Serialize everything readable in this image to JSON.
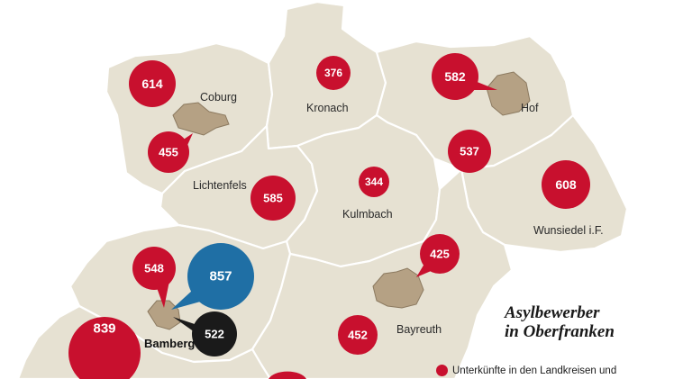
{
  "title": [
    "Asylbewerber",
    "in Oberfranken"
  ],
  "legend": {
    "label": "Unterkünfte in den Landkreisen und",
    "color": "#c8102e"
  },
  "colors": {
    "red": "#c8102e",
    "blue": "#1f6fa5",
    "black": "#1a1a1a",
    "land": "#e6e1d2",
    "city": "#b5a184"
  },
  "place_labels": [
    {
      "id": "coburg",
      "text": "Coburg"
    },
    {
      "id": "kronach",
      "text": "Kronach"
    },
    {
      "id": "hof",
      "text": "Hof"
    },
    {
      "id": "lichtenfels",
      "text": "Lichtenfels"
    },
    {
      "id": "kulmbach",
      "text": "Kulmbach"
    },
    {
      "id": "wunsiedel",
      "text": "Wunsiedel i.F."
    },
    {
      "id": "bayreuth",
      "text": "Bayreuth"
    },
    {
      "id": "bamberg",
      "text": "Bamberg"
    }
  ],
  "bubbles": [
    {
      "id": "coburg-lk",
      "value": "614",
      "kind": "red"
    },
    {
      "id": "coburg-city",
      "value": "455",
      "kind": "red"
    },
    {
      "id": "kronach",
      "value": "376",
      "kind": "red"
    },
    {
      "id": "hof-city",
      "value": "582",
      "kind": "red"
    },
    {
      "id": "hof-lk",
      "value": "537",
      "kind": "red"
    },
    {
      "id": "lichtenfels",
      "value": "585",
      "kind": "red"
    },
    {
      "id": "kulmbach",
      "value": "344",
      "kind": "red"
    },
    {
      "id": "wunsiedel",
      "value": "608",
      "kind": "red"
    },
    {
      "id": "bamberg-lk",
      "value": "548",
      "kind": "red"
    },
    {
      "id": "bamberg-blue",
      "value": "857",
      "kind": "blue"
    },
    {
      "id": "bamberg-black",
      "value": "522",
      "kind": "black"
    },
    {
      "id": "bayreuth-city",
      "value": "425",
      "kind": "red"
    },
    {
      "id": "bayreuth-lk",
      "value": "452",
      "kind": "red"
    },
    {
      "id": "forchheim",
      "value": "839",
      "kind": "red"
    }
  ]
}
